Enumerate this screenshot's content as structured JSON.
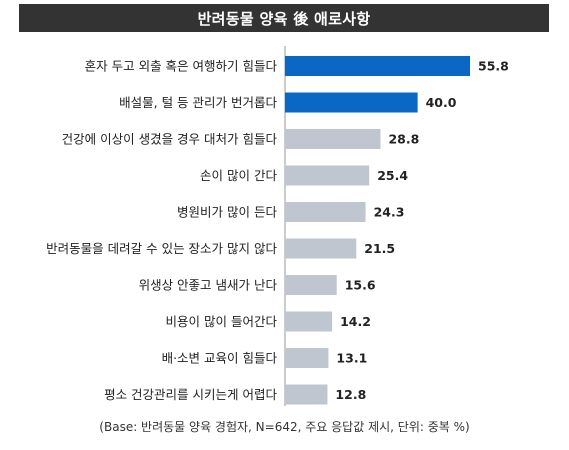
{
  "title": "반려동물 양육 後 애로사항",
  "footnote": "(Base: 반려동물 양육 경험자, N=642, 주요 응답값 제시, 단위: 중복 %)",
  "colors": {
    "highlight": "#0a67c4",
    "normal": "#bfc6cf",
    "title_bg": "#333333",
    "axis": "#999999"
  },
  "chart_data": {
    "type": "bar",
    "orientation": "horizontal",
    "title": "반려동물 양육 後 애로사항",
    "categories": [
      "혼자 두고 외출 혹은 여행하기 힘들다",
      "배설물, 털 등 관리가 번거롭다",
      "건강에 이상이 생겼을 경우 대처가 힘들다",
      "손이 많이 간다",
      "병원비가 많이 든다",
      "반려동물을 데려갈 수 있는 장소가 많지 않다",
      "위생상 안좋고 냄새가 난다",
      "비용이 많이 들어간다",
      "배·소변 교육이 힘들다",
      "평소 건강관리를 시키는게 어렵다"
    ],
    "values": [
      "55.8",
      "40.0",
      "28.8",
      "25.4",
      "24.3",
      "21.5",
      "15.6",
      "14.2",
      "13.1",
      "12.8"
    ],
    "highlighted_count": 2,
    "unit": "%",
    "legend": "none",
    "grid": false
  }
}
